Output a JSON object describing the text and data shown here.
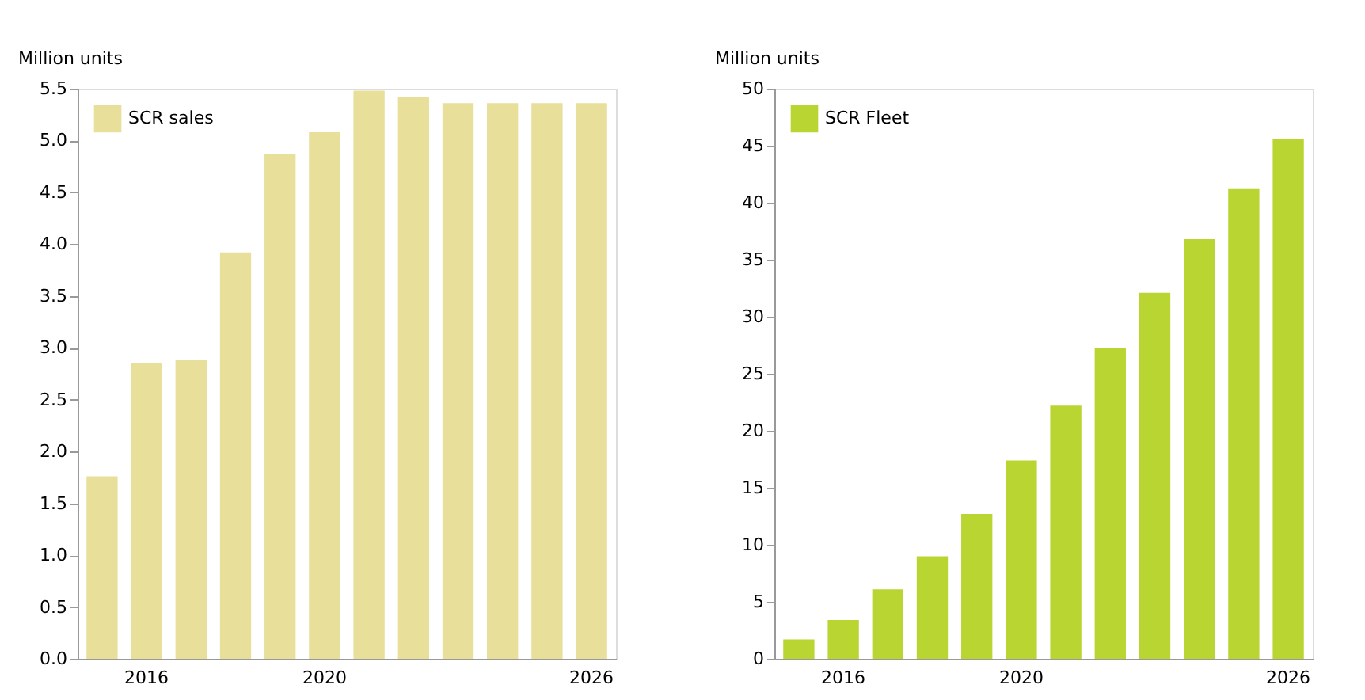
{
  "chart_data": [
    {
      "type": "bar",
      "ylabel": "Million units",
      "categories": [
        null,
        "2016",
        null,
        null,
        null,
        "2020",
        null,
        null,
        null,
        null,
        null,
        "2026"
      ],
      "ylim": [
        0,
        5.5
      ],
      "yticks": [
        {
          "value": 0,
          "label": "0.0"
        },
        0.5,
        {
          "value": 1,
          "label": "1.0"
        },
        1.5,
        {
          "value": 2,
          "label": "2.0"
        },
        2.5,
        {
          "value": 3,
          "label": "3.0"
        },
        3.5,
        {
          "value": 4,
          "label": "4.0"
        },
        4.5,
        {
          "value": 5,
          "label": "5.0"
        },
        5.5
      ],
      "grid": false,
      "legend": "top left",
      "series": [
        {
          "name": "SCR sales",
          "color": "#e8df9a",
          "values": [
            1.76,
            2.85,
            2.88,
            3.92,
            4.87,
            5.08,
            5.48,
            5.42,
            5.36,
            5.36,
            5.36,
            5.36
          ]
        }
      ]
    },
    {
      "type": "bar",
      "ylabel": "Million units",
      "categories": [
        null,
        "2016",
        null,
        null,
        null,
        "2020",
        null,
        null,
        null,
        null,
        null,
        "2026"
      ],
      "ylim": [
        0,
        50
      ],
      "yticks": [
        0,
        5,
        10,
        15,
        20,
        25,
        30,
        35,
        40,
        45,
        50
      ],
      "grid": false,
      "legend": "top left",
      "series": [
        {
          "name": "SCR Fleet",
          "color": "#b9d532",
          "values": [
            1.7,
            3.4,
            6.1,
            9.0,
            12.7,
            17.4,
            22.2,
            27.3,
            32.1,
            36.8,
            41.2,
            45.6
          ]
        }
      ]
    }
  ]
}
